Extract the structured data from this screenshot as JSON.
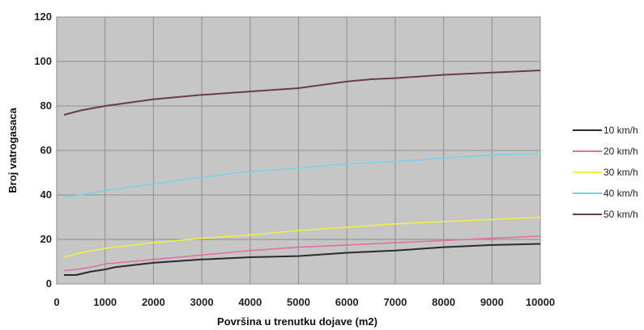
{
  "chart_data": {
    "type": "line",
    "title": "",
    "xlabel": "Površina u trenutku dojave (m2)",
    "ylabel": "Broj vatrogasaca",
    "xlim": [
      0,
      10000
    ],
    "ylim": [
      0,
      120
    ],
    "x_ticks": [
      0,
      1000,
      2000,
      3000,
      4000,
      5000,
      6000,
      7000,
      8000,
      9000,
      10000
    ],
    "y_ticks": [
      0,
      20,
      40,
      60,
      80,
      100,
      120
    ],
    "grid": true,
    "legend_position": "right",
    "series": [
      {
        "name": "10 km/h",
        "color": "#2b2b2b",
        "points": [
          [
            150,
            4
          ],
          [
            400,
            4
          ],
          [
            700,
            5.5
          ],
          [
            1000,
            6.5
          ],
          [
            1200,
            7.5
          ],
          [
            2000,
            9.5
          ],
          [
            3000,
            11
          ],
          [
            4000,
            12
          ],
          [
            5000,
            12.5
          ],
          [
            6000,
            14
          ],
          [
            7000,
            15
          ],
          [
            8000,
            16.5
          ],
          [
            9000,
            17.5
          ],
          [
            10000,
            18
          ]
        ]
      },
      {
        "name": "20 km/h",
        "color": "#e070a8",
        "points": [
          [
            150,
            6
          ],
          [
            400,
            6.5
          ],
          [
            700,
            7.5
          ],
          [
            1000,
            9
          ],
          [
            2000,
            11
          ],
          [
            3000,
            13
          ],
          [
            4000,
            15
          ],
          [
            5000,
            16.5
          ],
          [
            6000,
            17.5
          ],
          [
            7000,
            18.5
          ],
          [
            8000,
            19.5
          ],
          [
            9000,
            20.5
          ],
          [
            10000,
            21.5
          ]
        ]
      },
      {
        "name": "30 km/h",
        "color": "#f0f04a",
        "points": [
          [
            150,
            12
          ],
          [
            500,
            14
          ],
          [
            1000,
            16
          ],
          [
            2000,
            18.5
          ],
          [
            3000,
            20.5
          ],
          [
            4000,
            22
          ],
          [
            5000,
            24
          ],
          [
            6000,
            25.5
          ],
          [
            7000,
            27
          ],
          [
            8000,
            28
          ],
          [
            9000,
            29
          ],
          [
            10000,
            30
          ]
        ]
      },
      {
        "name": "40 km/h",
        "color": "#7dd0e8",
        "points": [
          [
            150,
            39
          ],
          [
            500,
            40
          ],
          [
            1000,
            42
          ],
          [
            2000,
            45
          ],
          [
            3000,
            48
          ],
          [
            4000,
            50.5
          ],
          [
            5000,
            52
          ],
          [
            6000,
            54
          ],
          [
            7000,
            55
          ],
          [
            8000,
            56.5
          ],
          [
            9000,
            58
          ],
          [
            10000,
            58.5
          ]
        ]
      },
      {
        "name": "50 km/h",
        "color": "#6a3b50",
        "points": [
          [
            150,
            76
          ],
          [
            500,
            78
          ],
          [
            1000,
            80
          ],
          [
            2000,
            83
          ],
          [
            3000,
            85
          ],
          [
            4000,
            86.5
          ],
          [
            5000,
            88
          ],
          [
            6000,
            91
          ],
          [
            6500,
            92
          ],
          [
            7000,
            92.5
          ],
          [
            8000,
            94
          ],
          [
            9000,
            95
          ],
          [
            10000,
            96
          ]
        ]
      }
    ]
  }
}
